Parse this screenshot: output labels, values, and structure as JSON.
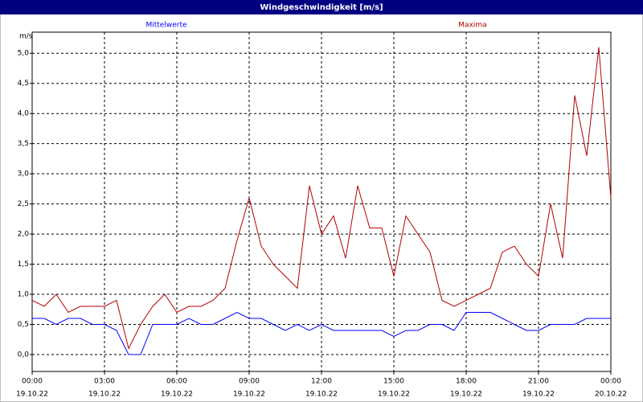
{
  "chart_data": {
    "type": "line",
    "title": "Windgeschwindigkeit [m/s]",
    "y_unit": "m/s",
    "x": [
      0,
      0.5,
      1,
      1.5,
      2,
      2.5,
      3,
      3.5,
      4,
      4.5,
      5,
      5.5,
      6,
      6.5,
      7,
      7.5,
      8,
      8.5,
      9,
      9.5,
      10,
      10.5,
      11,
      11.5,
      12,
      12.5,
      13,
      13.5,
      14,
      14.5,
      15,
      15.5,
      16,
      16.5,
      17,
      17.5,
      18,
      18.5,
      19,
      19.5,
      20,
      20.5,
      21,
      21.5,
      22,
      22.5,
      23,
      23.5,
      24
    ],
    "series": [
      {
        "name": "Mittelwerte",
        "color": "#0000ff",
        "values": [
          0.6,
          0.6,
          0.5,
          0.6,
          0.6,
          0.5,
          0.5,
          0.4,
          0.0,
          0.0,
          0.5,
          0.5,
          0.5,
          0.6,
          0.5,
          0.5,
          0.6,
          0.7,
          0.6,
          0.6,
          0.5,
          0.4,
          0.5,
          0.4,
          0.5,
          0.4,
          0.4,
          0.4,
          0.4,
          0.4,
          0.3,
          0.4,
          0.4,
          0.5,
          0.5,
          0.4,
          0.7,
          0.7,
          0.7,
          0.6,
          0.5,
          0.4,
          0.4,
          0.5,
          0.5,
          0.5,
          0.6,
          0.6,
          0.6
        ]
      },
      {
        "name": "Maxima",
        "color": "#b00000",
        "values": [
          0.9,
          0.8,
          1.0,
          0.7,
          0.8,
          0.8,
          0.8,
          0.9,
          0.1,
          0.5,
          0.8,
          1.0,
          0.7,
          0.8,
          0.8,
          0.9,
          1.1,
          1.9,
          2.6,
          1.8,
          1.5,
          1.3,
          1.1,
          2.8,
          2.0,
          2.3,
          1.6,
          2.8,
          2.1,
          2.1,
          1.3,
          2.3,
          2.0,
          1.7,
          0.9,
          0.8,
          0.9,
          1.0,
          1.1,
          1.7,
          1.8,
          1.5,
          1.3,
          2.5,
          1.6,
          4.3,
          3.3,
          5.1,
          2.6
        ]
      }
    ],
    "xlim": [
      0,
      24
    ],
    "xticks": [
      {
        "value": 0,
        "label": "00:00"
      },
      {
        "value": 3,
        "label": "03:00"
      },
      {
        "value": 6,
        "label": "06:00"
      },
      {
        "value": 9,
        "label": "09:00"
      },
      {
        "value": 12,
        "label": "12:00"
      },
      {
        "value": 15,
        "label": "15:00"
      },
      {
        "value": 18,
        "label": "18:00"
      },
      {
        "value": 21,
        "label": "21:00"
      },
      {
        "value": 24,
        "label": "00:00"
      }
    ],
    "xtick_dates": [
      "19.10.22",
      "19.10.22",
      "19.10.22",
      "19.10.22",
      "19.10.22",
      "19.10.22",
      "19.10.22",
      "19.10.22",
      "20.10.22"
    ],
    "ylim": [
      -0.28,
      5.35
    ],
    "yticks": [
      {
        "value": 0,
        "label": "0,0"
      },
      {
        "value": 0.5,
        "label": "0,5"
      },
      {
        "value": 1,
        "label": "1,0"
      },
      {
        "value": 1.5,
        "label": "1,5"
      },
      {
        "value": 2,
        "label": "2,0"
      },
      {
        "value": 2.5,
        "label": "2,5"
      },
      {
        "value": 3,
        "label": "3,0"
      },
      {
        "value": 3.5,
        "label": "3,5"
      },
      {
        "value": 4,
        "label": "4,0"
      },
      {
        "value": 4.5,
        "label": "4,5"
      },
      {
        "value": 5,
        "label": "5,0"
      }
    ],
    "grid": true
  }
}
